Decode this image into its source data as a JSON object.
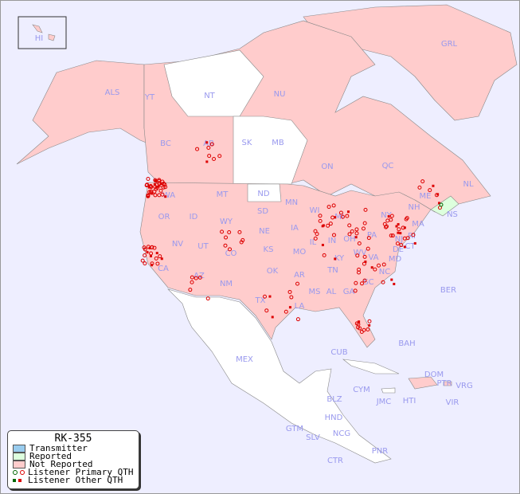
{
  "title": "RK-355",
  "colors": {
    "background": "#eeeeff",
    "transmitter": "#99ccee",
    "reported": "#ddffdd",
    "not_reported": "#ffcccc",
    "unlisted": "#ffffff",
    "listener_dot": "#dd0000",
    "reported_dot": "#006600"
  },
  "legend": [
    {
      "label": "Transmitter",
      "type": "swatch",
      "color": "#99ccee"
    },
    {
      "label": "Reported",
      "type": "swatch",
      "color": "#ddffdd"
    },
    {
      "label": "Not Reported",
      "type": "swatch",
      "color": "#ffcccc"
    },
    {
      "label": "Listener Primary QTH",
      "type": "circle"
    },
    {
      "label": "Listener Other QTH",
      "type": "square"
    }
  ],
  "regions": [
    "HI",
    "ALS",
    "YT",
    "NT",
    "NU",
    "GRL",
    "BC",
    "AB",
    "SK",
    "MB",
    "ON",
    "QC",
    "NL",
    "NS",
    "WA",
    "OR",
    "ID",
    "MT",
    "WY",
    "ND",
    "SD",
    "NE",
    "MN",
    "IA",
    "WI",
    "MI",
    "IL",
    "IN",
    "OH",
    "PA",
    "NY",
    "NH",
    "ME",
    "MA",
    "CT",
    "RI",
    "NJ",
    "DE",
    "MD",
    "VA",
    "WV",
    "KY",
    "TN",
    "NC",
    "SC",
    "GA",
    "AL",
    "MS",
    "LA",
    "AR",
    "MO",
    "KS",
    "OK",
    "TX",
    "NM",
    "AZ",
    "UT",
    "CO",
    "NV",
    "CA",
    "MEX",
    "CUB",
    "BAH",
    "BER",
    "DOM",
    "PTR",
    "VRG",
    "CYM",
    "JMC",
    "HTI",
    "VIR",
    "BLZ",
    "HND",
    "GTM",
    "SLV",
    "NCG",
    "CTR",
    "PNR"
  ]
}
